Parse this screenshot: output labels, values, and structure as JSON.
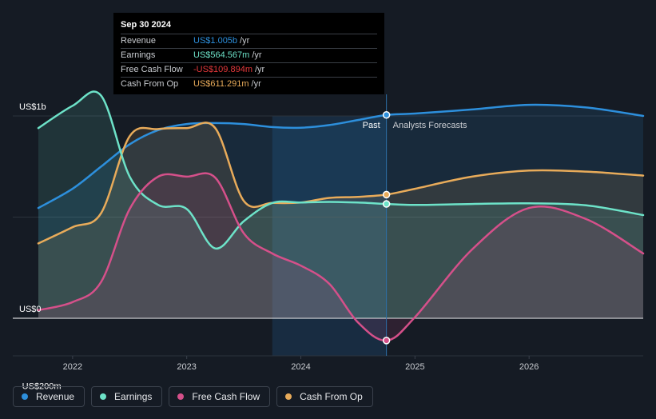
{
  "colors": {
    "revenue": "#2d8fdc",
    "earnings": "#6de2c8",
    "free_cash_flow": "#d5508a",
    "cash_from_op": "#e8ab5a"
  },
  "tooltip": {
    "date": "Sep 30 2024",
    "rows": [
      {
        "label": "Revenue",
        "value": "US$1.005b",
        "unit": "/yr",
        "color": "#2d8fdc"
      },
      {
        "label": "Earnings",
        "value": "US$564.567m",
        "unit": "/yr",
        "color": "#6de2c8"
      },
      {
        "label": "Free Cash Flow",
        "value": "-US$109.894m",
        "unit": "/yr",
        "color": "#e5383b"
      },
      {
        "label": "Cash From Op",
        "value": "US$611.291m",
        "unit": "/yr",
        "color": "#e8ab5a"
      }
    ]
  },
  "labels": {
    "past": "Past",
    "forecast": "Analysts Forecasts"
  },
  "legend": [
    {
      "label": "Revenue",
      "color": "#2d8fdc"
    },
    {
      "label": "Earnings",
      "color": "#6de2c8"
    },
    {
      "label": "Free Cash Flow",
      "color": "#d5508a"
    },
    {
      "label": "Cash From Op",
      "color": "#e8ab5a"
    }
  ],
  "chart_data": {
    "type": "line",
    "y_tick_labels": [
      "US$1b",
      "US$0",
      "-US$200m"
    ],
    "x_tick_labels": [
      "2022",
      "2023",
      "2024",
      "2025",
      "2026"
    ],
    "ylim": [
      -200,
      1000
    ],
    "xlim": [
      2021.7,
      2027.0
    ],
    "grid": true,
    "divider_x": 2024.75,
    "past_region_start": 2023.75,
    "series": [
      {
        "name": "Revenue",
        "key": "revenue",
        "x": [
          2021.7,
          2022.0,
          2022.25,
          2022.5,
          2022.75,
          2023.0,
          2023.25,
          2023.5,
          2023.75,
          2024.0,
          2024.25,
          2024.5,
          2024.75,
          2025.0,
          2025.5,
          2026.0,
          2026.5,
          2027.0
        ],
        "y": [
          545,
          640,
          750,
          860,
          930,
          960,
          965,
          960,
          945,
          942,
          955,
          980,
          1005,
          1012,
          1032,
          1055,
          1042,
          1000
        ]
      },
      {
        "name": "Earnings",
        "key": "earnings",
        "x": [
          2021.7,
          2022.0,
          2022.25,
          2022.5,
          2022.75,
          2023.0,
          2023.25,
          2023.5,
          2023.75,
          2024.0,
          2024.25,
          2024.5,
          2024.75,
          2025.0,
          2025.5,
          2026.0,
          2026.5,
          2027.0
        ],
        "y": [
          940,
          1050,
          1100,
          700,
          560,
          540,
          345,
          480,
          570,
          572,
          575,
          572,
          565,
          560,
          565,
          568,
          558,
          510
        ]
      },
      {
        "name": "Free Cash Flow",
        "key": "free_cash_flow",
        "x": [
          2021.7,
          2022.0,
          2022.25,
          2022.5,
          2022.75,
          2023.0,
          2023.25,
          2023.5,
          2023.75,
          2024.0,
          2024.25,
          2024.5,
          2024.75,
          2025.0,
          2025.5,
          2026.0,
          2026.5,
          2027.0
        ],
        "y": [
          40,
          80,
          180,
          540,
          700,
          700,
          695,
          420,
          320,
          260,
          170,
          -20,
          -110,
          5,
          340,
          545,
          490,
          320
        ]
      },
      {
        "name": "Cash From Op",
        "key": "cash_from_op",
        "x": [
          2021.7,
          2022.0,
          2022.25,
          2022.5,
          2022.75,
          2023.0,
          2023.25,
          2023.5,
          2023.75,
          2024.0,
          2024.25,
          2024.5,
          2024.75,
          2025.0,
          2025.5,
          2026.0,
          2026.5,
          2027.0
        ],
        "y": [
          370,
          450,
          520,
          900,
          935,
          940,
          940,
          580,
          570,
          572,
          595,
          600,
          611,
          640,
          700,
          730,
          725,
          705
        ]
      }
    ]
  }
}
